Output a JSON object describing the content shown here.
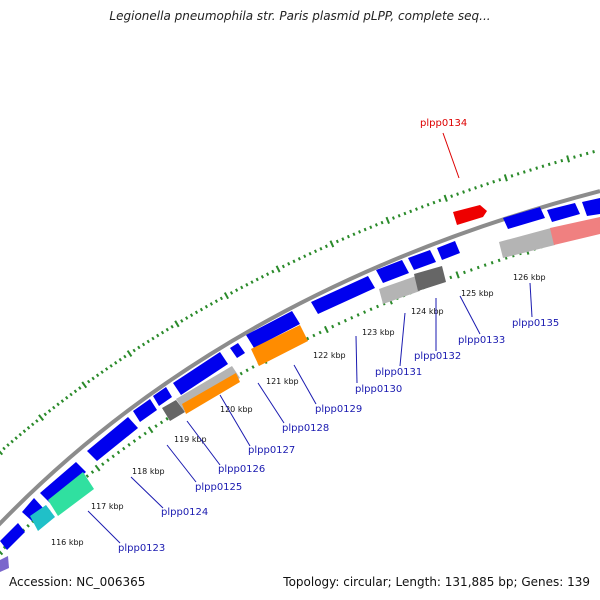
{
  "title": "Legionella pneumophila str. Paris plasmid pLPP, complete seq...",
  "footer": {
    "accession": "Accession: NC_006365",
    "summary": "Topology: circular; Length: 131,885 bp; Genes: 139"
  },
  "colors": {
    "backbone": "#8c8c8c",
    "cds_blue": "#0000ee",
    "tick_green": "#2a8a2a",
    "label_blue": "#1a1ab0",
    "label_red": "#dd0000",
    "gene_red": "#ee0000",
    "orange": "#ff8c00",
    "gray": "#b4b4b4",
    "dark_gray": "#666666",
    "teal": "#20c0c8",
    "spring_green": "#30e0a0",
    "salmon": "#f08080"
  },
  "scale_labels": [
    "116 kbp",
    "117 kbp",
    "118 kbp",
    "119 kbp",
    "120 kbp",
    "121 kbp",
    "122 kbp",
    "123 kbp",
    "124 kbp",
    "125 kbp",
    "126 kbp"
  ],
  "gene_labels": [
    {
      "text": "plpp0123",
      "color": "#1a1ab0"
    },
    {
      "text": "plpp0124",
      "color": "#1a1ab0"
    },
    {
      "text": "plpp0125",
      "color": "#1a1ab0"
    },
    {
      "text": "plpp0126",
      "color": "#1a1ab0"
    },
    {
      "text": "plpp0127",
      "color": "#1a1ab0"
    },
    {
      "text": "plpp0128",
      "color": "#1a1ab0"
    },
    {
      "text": "plpp0129",
      "color": "#1a1ab0"
    },
    {
      "text": "plpp0130",
      "color": "#1a1ab0"
    },
    {
      "text": "plpp0131",
      "color": "#1a1ab0"
    },
    {
      "text": "plpp0132",
      "color": "#1a1ab0"
    },
    {
      "text": "plpp0133",
      "color": "#1a1ab0"
    },
    {
      "text": "plpp0135",
      "color": "#1a1ab0"
    },
    {
      "text": "plpp0134",
      "color": "#dd0000"
    }
  ]
}
